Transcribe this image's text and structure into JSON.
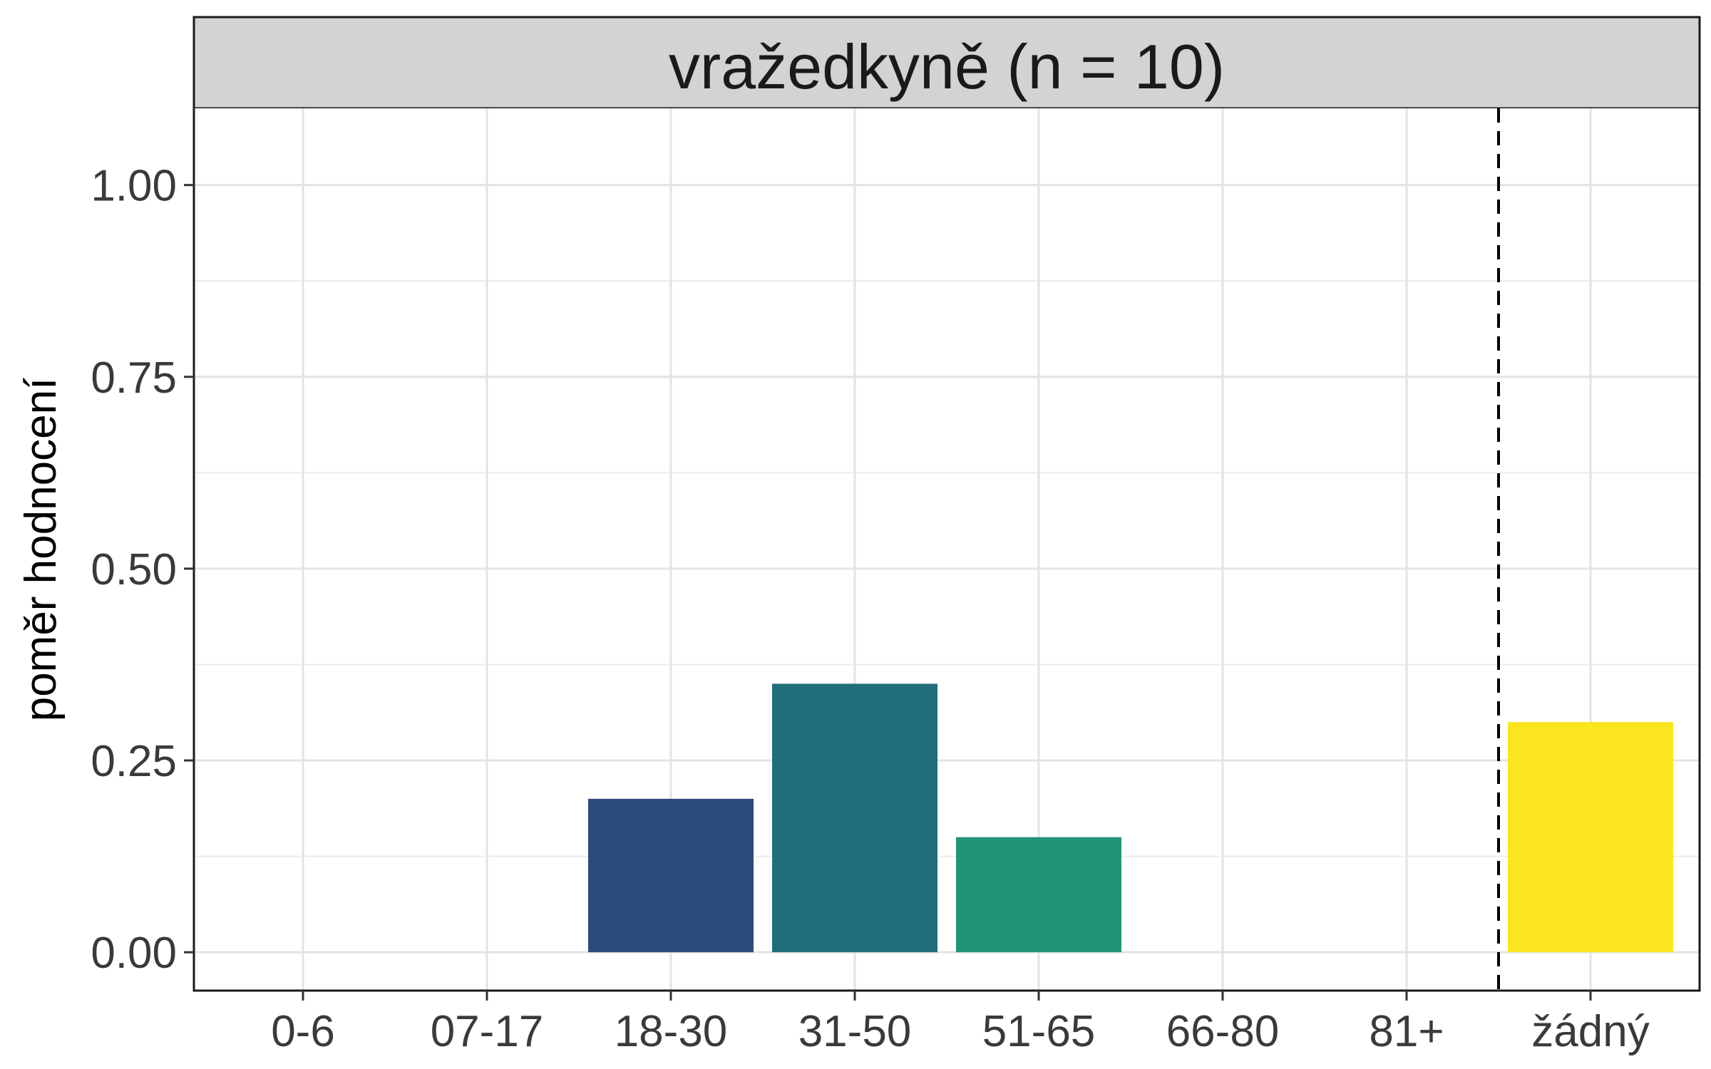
{
  "chart_data": {
    "type": "bar",
    "facet_title": "vražedkyně (n = 10)",
    "ylabel": "poměr hodnocení",
    "xlabel": "",
    "categories": [
      "0-6",
      "07-17",
      "18-30",
      "31-50",
      "51-65",
      "66-80",
      "81+",
      "žádný"
    ],
    "values": [
      0,
      0,
      0.2,
      0.35,
      0.15,
      0,
      0,
      0.3
    ],
    "colors": [
      "#440154",
      "#46327E",
      "#2C4A7A",
      "#216E7A",
      "#219477",
      "#5EC962",
      "#B5DE2B",
      "#FCE51E"
    ],
    "ylim": [
      -0.05,
      1.1
    ],
    "yticks": [
      0,
      0.25,
      0.5,
      0.75,
      1.0
    ],
    "ytick_labels": [
      "0.00",
      "0.25",
      "0.50",
      "0.75",
      "1.00"
    ],
    "separator_after": "81+",
    "separator_style": "dashed",
    "grid": true,
    "legend": "none"
  }
}
